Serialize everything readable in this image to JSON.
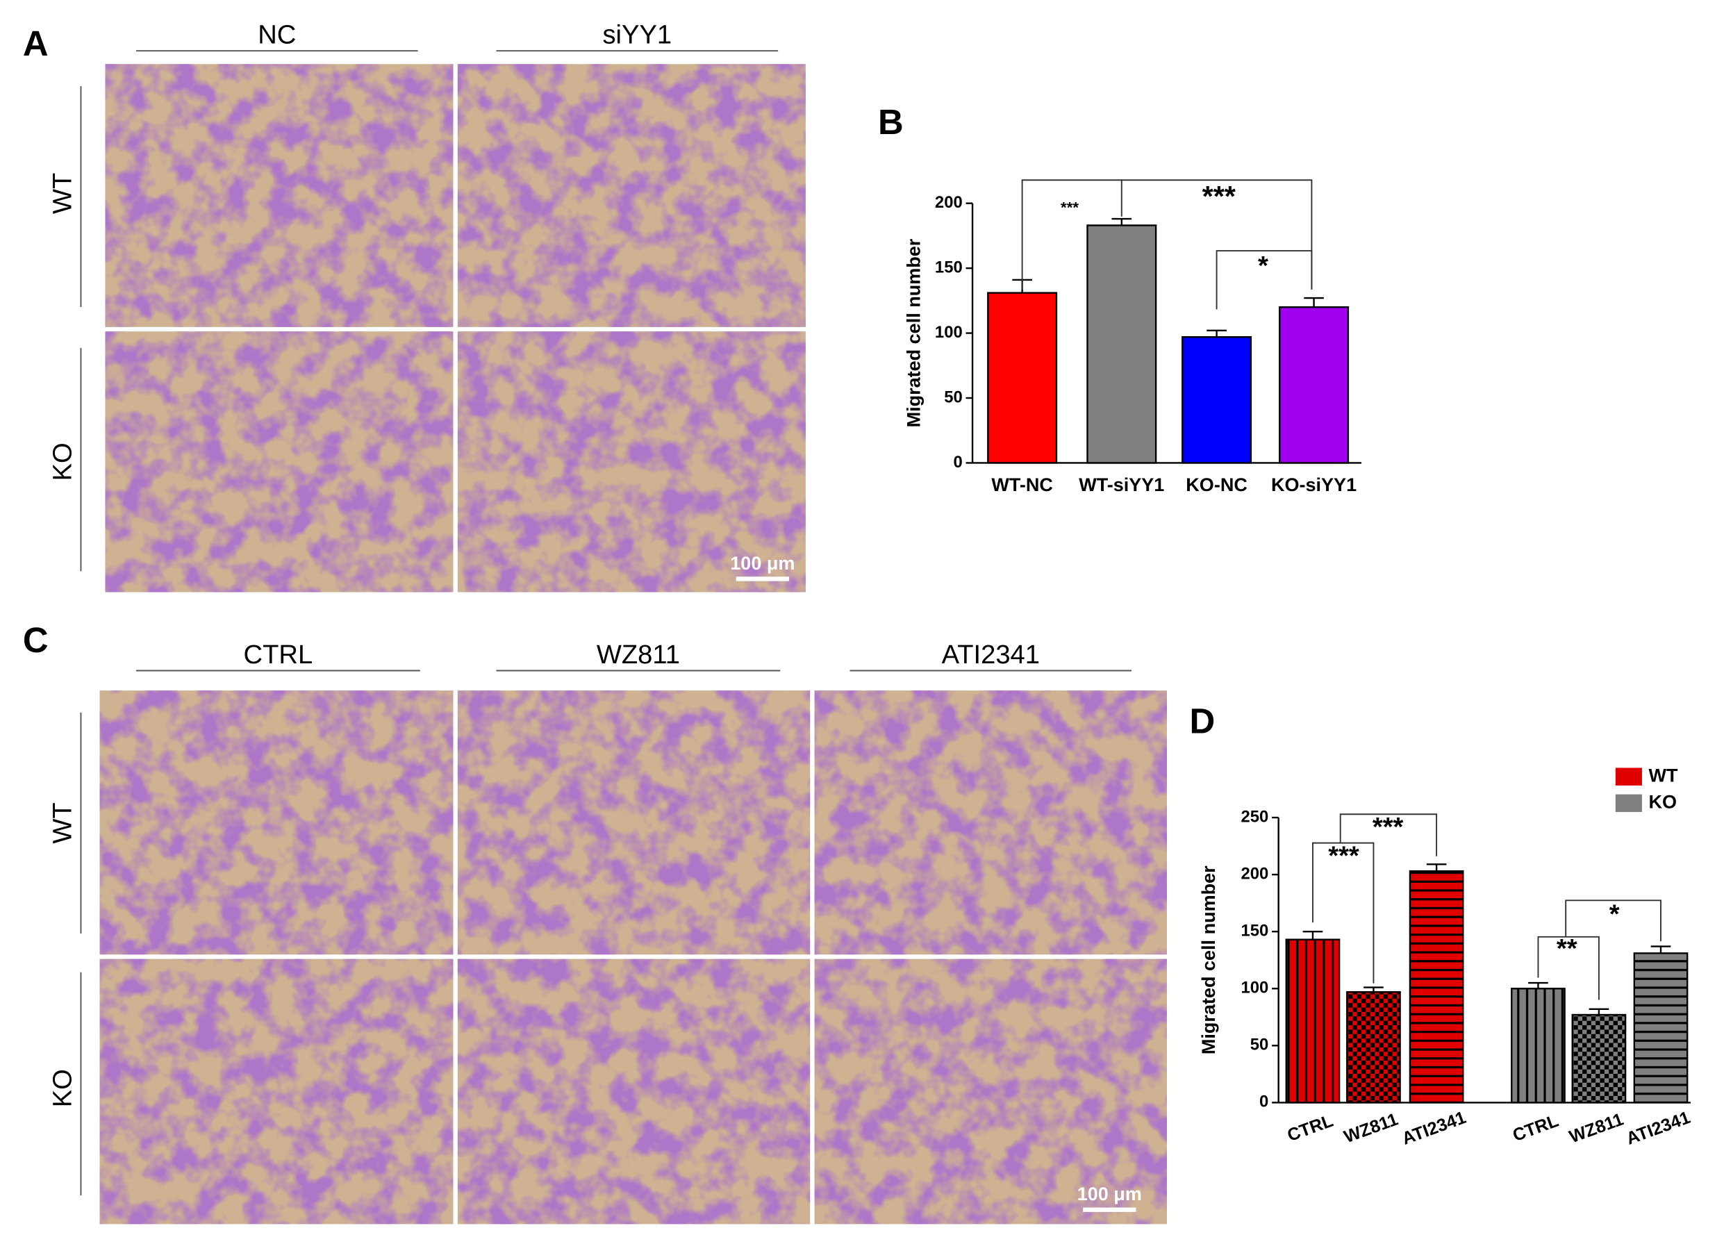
{
  "panel_labels": [
    "A",
    "B",
    "C",
    "D"
  ],
  "panel_a": {
    "columns": [
      "NC",
      "siYY1"
    ],
    "rows": [
      "WT",
      "KO"
    ],
    "scale_bar": "100 μm"
  },
  "panel_c": {
    "columns": [
      "CTRL",
      "WZ811",
      "ATI2341"
    ],
    "rows": [
      "WT",
      "KO"
    ],
    "scale_bar": "100 μm"
  },
  "chart_data": [
    {
      "type": "bar",
      "ylabel": "Migrated cell number",
      "categories": [
        "WT-NC",
        "WT-siYY1",
        "KO-NC",
        "KO-siYY1"
      ],
      "values": [
        131,
        183,
        97,
        120
      ],
      "errors": [
        10,
        5,
        5,
        7
      ],
      "colors": [
        "#ff0000",
        "#808080",
        "#0000ff",
        "#a000ee"
      ],
      "ylim": [
        0,
        200
      ],
      "yticks": [
        0,
        50,
        100,
        150,
        200
      ],
      "annotations": [
        "***",
        "***",
        "*"
      ]
    },
    {
      "type": "grouped_bar",
      "ylabel": "Migrated cell number",
      "categories": [
        "CTRL",
        "WZ811",
        "ATI2341"
      ],
      "series": [
        {
          "name": "WT",
          "color": "#e00000",
          "values": [
            143,
            97,
            203
          ],
          "errors": [
            7,
            4,
            6
          ]
        },
        {
          "name": "KO",
          "color": "#808080",
          "values": [
            100,
            77,
            131
          ],
          "errors": [
            5,
            5,
            6
          ]
        }
      ],
      "ylim": [
        0,
        250
      ],
      "yticks": [
        0,
        50,
        100,
        150,
        200,
        250
      ],
      "legend": "upper right",
      "annotations": [
        "***",
        "***",
        "**",
        "*"
      ]
    }
  ]
}
